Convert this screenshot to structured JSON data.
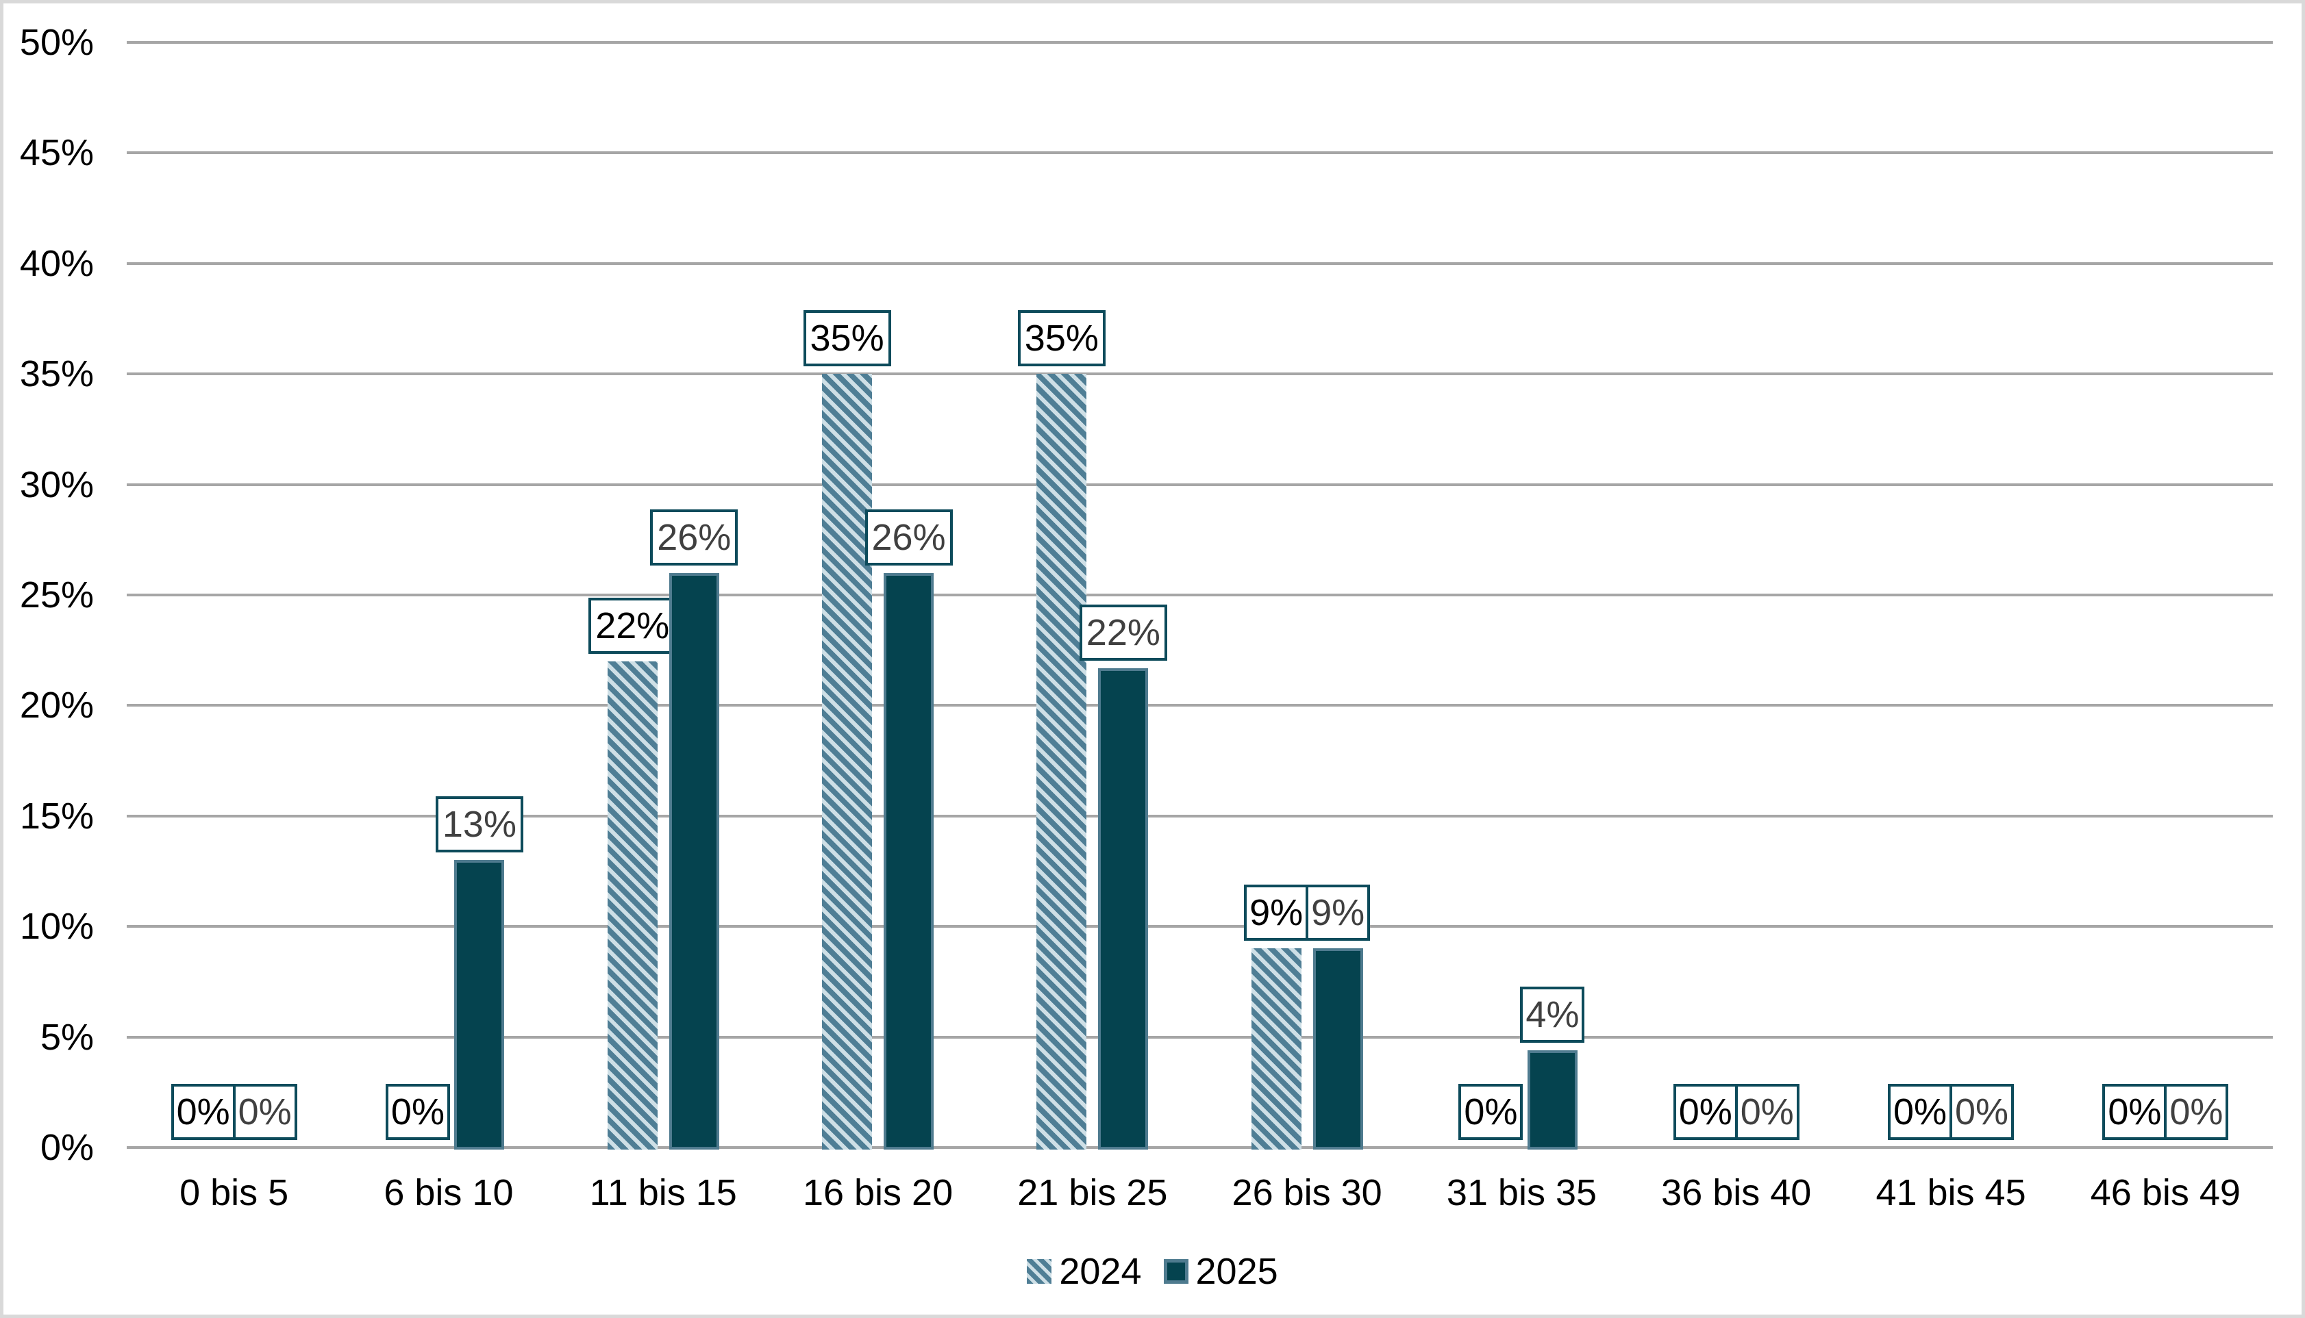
{
  "chart_data": {
    "type": "bar",
    "title": "",
    "categories": [
      "0 bis 5",
      "6 bis 10",
      "11 bis 15",
      "16 bis 20",
      "21 bis 25",
      "26 bis 30",
      "31 bis 35",
      "36 bis 40",
      "41 bis 45",
      "46 bis 49"
    ],
    "series": [
      {
        "name": "2024",
        "style": "hatched",
        "values": [
          0,
          0,
          22,
          35,
          35,
          9,
          0,
          0,
          0,
          0
        ],
        "labels": [
          "0%",
          "0%",
          "22%",
          "35%",
          "35%",
          "9%",
          "0%",
          "0%",
          "0%",
          "0%"
        ],
        "label_text_color": "#000000"
      },
      {
        "name": "2025",
        "style": "solid",
        "values": [
          0,
          13,
          26,
          26,
          21.7,
          9,
          4.4,
          0,
          0,
          0
        ],
        "labels": [
          "0%",
          "13%",
          "26%",
          "26%",
          "22%",
          "9%",
          "4%",
          "0%",
          "0%",
          "0%"
        ],
        "label_text_color": "#404040"
      }
    ],
    "xlabel": "",
    "ylabel": "",
    "ylim": [
      0,
      50
    ],
    "ytick_step": 5,
    "ytick_labels": [
      "0%",
      "5%",
      "10%",
      "15%",
      "20%",
      "25%",
      "30%",
      "35%",
      "40%",
      "45%",
      "50%"
    ],
    "grid": "horizontal",
    "legend_position": "bottom-center",
    "colors": {
      "hatch_base": "#4F7E95",
      "hatch_stripe": "#CEDFE6",
      "solid_fill": "#05434F",
      "solid_border": "#4F7B8F",
      "label_box_border": "#0D4B5B",
      "gridline": "#A6A6A6",
      "axis_text": "#000000",
      "canvas_border": "#D9D9D9"
    }
  }
}
